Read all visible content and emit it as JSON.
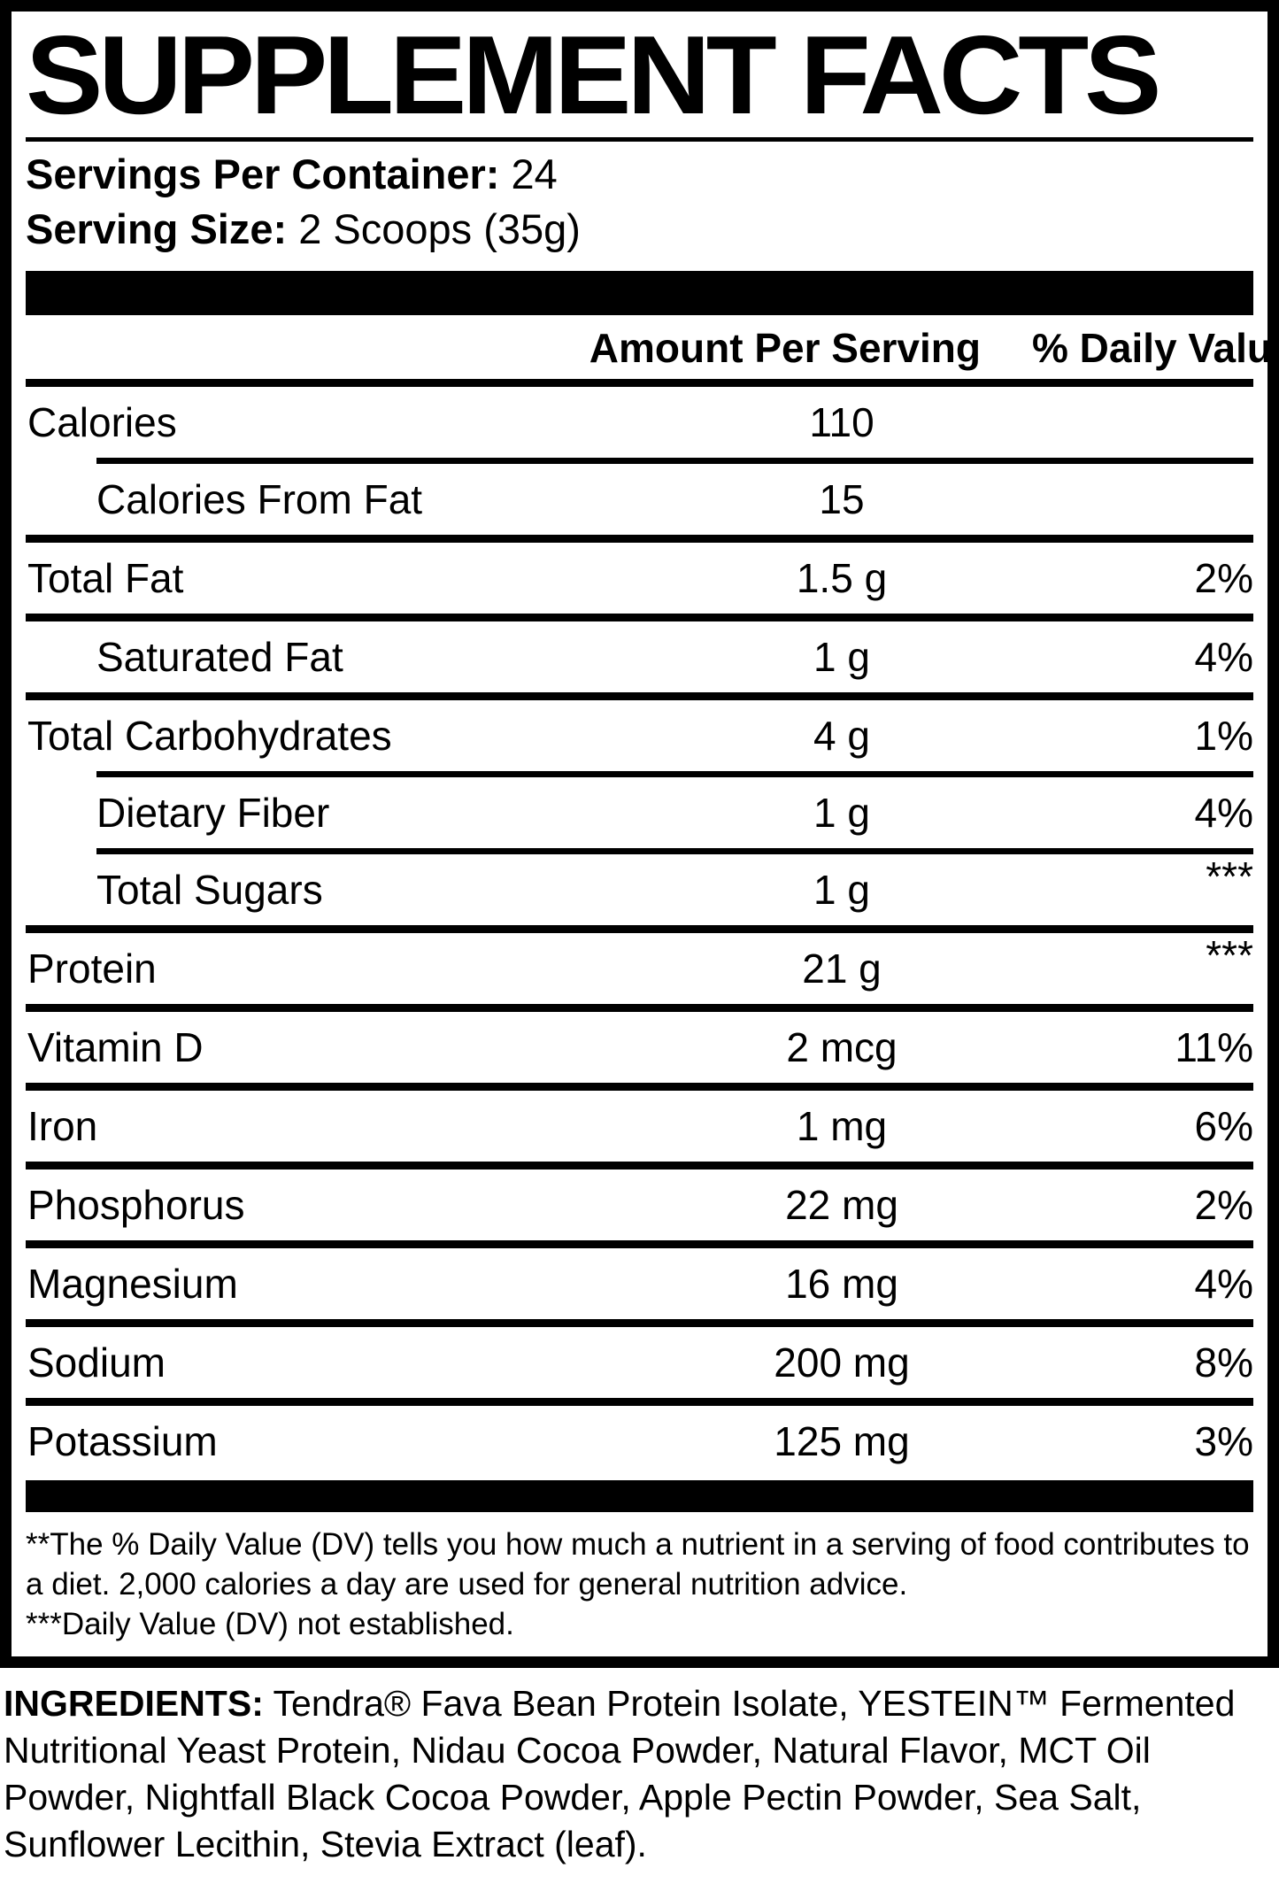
{
  "title": "SUPPLEMENT FACTS",
  "servings": {
    "label": "Servings Per Container:",
    "value": "24"
  },
  "serving_size": {
    "label": "Serving Size:",
    "value": "2 Scoops (35g)"
  },
  "table": {
    "amount_header": "Amount Per Serving",
    "dv_header": "% Daily Value**",
    "rows": [
      {
        "name": "Calories",
        "amount": "110",
        "dv": ""
      },
      {
        "name": "Calories From Fat",
        "amount": "15",
        "dv": ""
      },
      {
        "name": "Total Fat",
        "amount": "1.5 g",
        "dv": "2%"
      },
      {
        "name": "Saturated Fat",
        "amount": "1 g",
        "dv": "4%"
      },
      {
        "name": "Total Carbohydrates",
        "amount": "4 g",
        "dv": "1%"
      },
      {
        "name": "Dietary Fiber",
        "amount": "1 g",
        "dv": "4%"
      },
      {
        "name": "Total Sugars",
        "amount": "1 g",
        "dv": "***"
      },
      {
        "name": "Protein",
        "amount": "21 g",
        "dv": "***"
      },
      {
        "name": "Vitamin D",
        "amount": "2 mcg",
        "dv": "11%"
      },
      {
        "name": "Iron",
        "amount": "1 mg",
        "dv": "6%"
      },
      {
        "name": "Phosphorus",
        "amount": "22 mg",
        "dv": "2%"
      },
      {
        "name": "Magnesium",
        "amount": "16 mg",
        "dv": "4%"
      },
      {
        "name": "Sodium",
        "amount": "200 mg",
        "dv": "8%"
      },
      {
        "name": "Potassium",
        "amount": "125 mg",
        "dv": "3%"
      }
    ]
  },
  "footnotes": [
    "**The % Daily Value (DV) tells you how much a nutrient in a serving of food contributes to a diet. 2,000 calories a day are used for general nutrition advice.",
    "***Daily Value (DV) not established."
  ],
  "ingredients": {
    "label": "INGREDIENTS:",
    "text": "Tendra® Fava Bean Protein Isolate, YESTEIN™ Fermented Nutritional Yeast Protein, Nidau Cocoa Powder, Natural Flavor, MCT Oil Powder, Nightfall Black Cocoa Powder, Apple Pectin Powder, Sea Salt, Sunflower Lecithin, Stevia Extract (leaf)."
  },
  "colors": {
    "ink": "#000000",
    "background": "#ffffff"
  }
}
